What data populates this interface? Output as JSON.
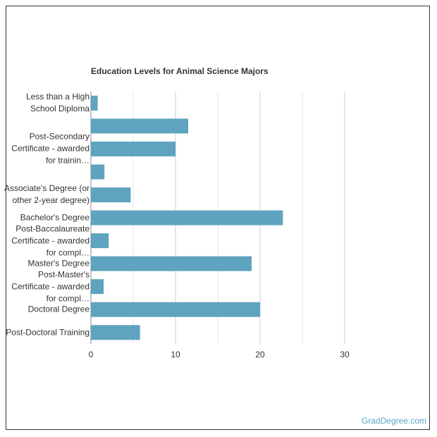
{
  "chart_data": {
    "type": "bar",
    "orientation": "horizontal",
    "title": "Education Levels for Animal Science Majors",
    "categories": [
      "Less than a High School Diploma",
      null,
      "Post-Secondary Certificate - awarded for trainin…",
      null,
      "Associate's Degree (or other 2-year degree)",
      "Bachelor's Degree",
      "Post-Baccalaureate Certificate - awarded for compl…",
      "Master's Degree",
      "Post-Master's Certificate - awarded for compl…",
      "Doctoral Degree",
      "Post-Doctoral Training"
    ],
    "values": [
      0.8,
      11.5,
      10,
      1.6,
      4.7,
      22.7,
      2.1,
      19,
      1.5,
      20,
      5.8
    ],
    "color": "#5ea3bf",
    "xlim": [
      0,
      30
    ],
    "xticks": [
      0,
      10,
      20,
      30
    ],
    "x_minor_ticks": [
      5,
      15,
      25
    ],
    "grid": true
  },
  "footer": "GradDegree.com"
}
